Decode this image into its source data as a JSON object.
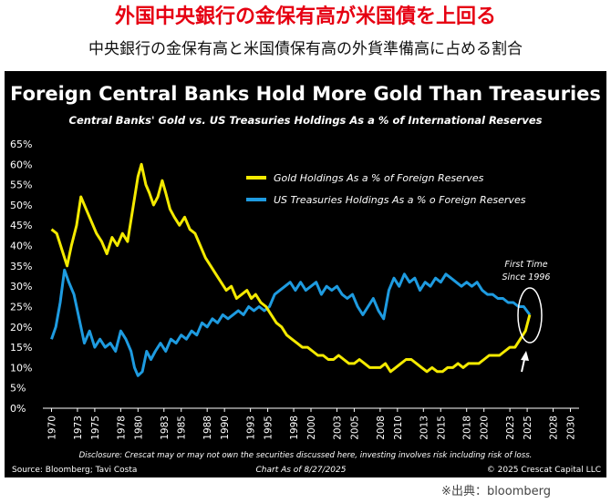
{
  "header": {
    "headline": "外国中央銀行の金保有高が米国債を上回る",
    "subheadline": "中央銀行の金保有高と米国債保有高の外貨準備高に占める割合"
  },
  "footer": {
    "source_note": "※出典：bloomberg"
  },
  "chart": {
    "title": "Foreign Central Banks Hold More Gold Than Treasuries",
    "subtitle": "Central Banks' Gold vs. US Treasuries Holdings As a % of International Reserves",
    "annotation_line1": "First Time",
    "annotation_line2": "Since 1996",
    "disclosure": "Disclosure: Crescat may or may not own the securities discussed here, investing involves risk including risk of loss.",
    "source": "Source: Bloomberg; Tavi Costa",
    "date": "Chart As of 8/27/2025",
    "copyright": "© 2025 Crescat Capital LLC"
  },
  "chart_data": {
    "type": "line",
    "title": "Foreign Central Banks Hold More Gold Than Treasuries",
    "subtitle": "Central Banks' Gold vs. US Treasuries Holdings As a % of International Reserves",
    "xlim": [
      1969,
      2031
    ],
    "ylim": [
      0,
      65
    ],
    "x_ticks": [
      1970,
      1973,
      1975,
      1978,
      1980,
      1983,
      1985,
      1988,
      1990,
      1993,
      1995,
      1998,
      2000,
      2003,
      2005,
      2008,
      2010,
      2013,
      2015,
      2018,
      2020,
      2023,
      2025,
      2028,
      2030
    ],
    "y_ticks": [
      0,
      5,
      10,
      15,
      20,
      25,
      30,
      35,
      40,
      45,
      50,
      55,
      60,
      65
    ],
    "y_tick_format": "percent",
    "grid": false,
    "legend_position": "top-right",
    "colors": {
      "background": "#000000",
      "gold": "#f4ea00",
      "treasuries": "#1e9be0"
    },
    "series": [
      {
        "name": "Gold Holdings As a % of Foreign Reserves",
        "color": "#f4ea00",
        "x": [
          1970.0,
          1970.6,
          1971.2,
          1971.8,
          1972.3,
          1972.9,
          1973.4,
          1974.0,
          1974.6,
          1975.2,
          1975.8,
          1976.4,
          1977.0,
          1977.6,
          1978.2,
          1978.8,
          1979.4,
          1980.0,
          1980.4,
          1980.9,
          1981.3,
          1981.8,
          1982.3,
          1982.8,
          1983.2,
          1983.7,
          1984.2,
          1984.8,
          1985.4,
          1986.0,
          1986.6,
          1987.2,
          1987.8,
          1988.4,
          1989.0,
          1989.6,
          1990.2,
          1990.8,
          1991.4,
          1992.0,
          1992.6,
          1993.1,
          1993.6,
          1994.2,
          1994.8,
          1995.4,
          1996.0,
          1996.6,
          1997.2,
          1997.8,
          1998.4,
          1999.0,
          1999.6,
          2000.2,
          2000.8,
          2001.4,
          2002.0,
          2002.6,
          2003.2,
          2003.8,
          2004.4,
          2005.0,
          2005.6,
          2006.2,
          2006.8,
          2007.4,
          2008.0,
          2008.6,
          2009.2,
          2009.8,
          2010.4,
          2011.0,
          2011.6,
          2012.2,
          2012.8,
          2013.4,
          2014.0,
          2014.6,
          2015.2,
          2015.8,
          2016.4,
          2017.0,
          2017.6,
          2018.2,
          2018.8,
          2019.4,
          2020.0,
          2020.6,
          2021.2,
          2021.8,
          2022.4,
          2023.0,
          2023.6,
          2024.2,
          2024.8,
          2025.3
        ],
        "values": [
          44,
          43,
          39,
          35,
          40,
          45,
          52,
          49,
          46,
          43,
          41,
          38,
          42,
          40,
          43,
          41,
          49,
          57,
          60,
          55,
          53,
          50,
          52,
          56,
          53,
          49,
          47,
          45,
          47,
          44,
          43,
          40,
          37,
          35,
          33,
          31,
          29,
          30,
          27,
          28,
          29,
          27,
          28,
          26,
          25,
          23,
          21,
          20,
          18,
          17,
          16,
          15,
          15,
          14,
          13,
          13,
          12,
          12,
          13,
          12,
          11,
          11,
          12,
          11,
          10,
          10,
          10,
          11,
          9,
          10,
          11,
          12,
          12,
          11,
          10,
          9,
          10,
          9,
          9,
          10,
          10,
          11,
          10,
          11,
          11,
          11,
          12,
          13,
          13,
          13,
          14,
          15,
          15,
          17,
          19,
          23
        ]
      },
      {
        "name": "US Treasuries Holdings As a % o Foreign Reserves",
        "color": "#1e9be0",
        "x": [
          1970.0,
          1970.5,
          1971.0,
          1971.5,
          1972.0,
          1972.6,
          1973.2,
          1973.8,
          1974.4,
          1975.0,
          1975.6,
          1976.2,
          1976.8,
          1977.4,
          1978.0,
          1978.6,
          1979.2,
          1979.6,
          1980.0,
          1980.5,
          1981.0,
          1981.5,
          1982.0,
          1982.6,
          1983.2,
          1983.8,
          1984.4,
          1985.0,
          1985.6,
          1986.2,
          1986.8,
          1987.4,
          1988.0,
          1988.6,
          1989.2,
          1989.8,
          1990.4,
          1991.0,
          1991.6,
          1992.2,
          1992.8,
          1993.4,
          1994.0,
          1994.6,
          1995.2,
          1995.8,
          1996.4,
          1997.0,
          1997.6,
          1998.2,
          1998.8,
          1999.4,
          2000.0,
          2000.6,
          2001.2,
          2001.8,
          2002.4,
          2003.0,
          2003.6,
          2004.2,
          2004.8,
          2005.4,
          2006.0,
          2006.6,
          2007.2,
          2007.8,
          2008.4,
          2009.0,
          2009.6,
          2010.2,
          2010.8,
          2011.4,
          2012.0,
          2012.6,
          2013.2,
          2013.8,
          2014.4,
          2015.0,
          2015.6,
          2016.2,
          2016.8,
          2017.4,
          2018.0,
          2018.6,
          2019.2,
          2019.8,
          2020.4,
          2021.0,
          2021.6,
          2022.2,
          2022.8,
          2023.4,
          2024.0,
          2024.6,
          2025.3
        ],
        "values": [
          17,
          20,
          26,
          34,
          31,
          28,
          22,
          16,
          19,
          15,
          17,
          15,
          16,
          14,
          19,
          17,
          14,
          10,
          8,
          9,
          14,
          12,
          14,
          16,
          14,
          17,
          16,
          18,
          17,
          19,
          18,
          21,
          20,
          22,
          21,
          23,
          22,
          23,
          24,
          23,
          25,
          24,
          25,
          24,
          25,
          28,
          29,
          30,
          31,
          29,
          31,
          29,
          30,
          31,
          28,
          30,
          29,
          30,
          28,
          27,
          28,
          25,
          23,
          25,
          27,
          24,
          22,
          29,
          32,
          30,
          33,
          31,
          32,
          29,
          31,
          30,
          32,
          31,
          33,
          32,
          31,
          30,
          31,
          30,
          31,
          29,
          28,
          28,
          27,
          27,
          26,
          26,
          25,
          25,
          23
        ]
      }
    ]
  }
}
